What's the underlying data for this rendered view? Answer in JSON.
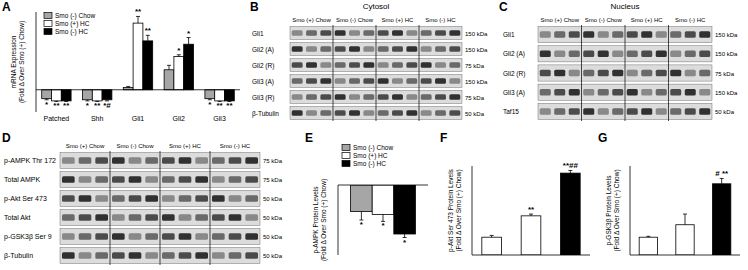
{
  "chart_data": [
    {
      "panel": "A",
      "type": "bar",
      "y_label": "mRNA Expression (Fold Δ Over Smo (+) Chow)",
      "categories": [
        "Patched",
        "Shh",
        "Gli1",
        "Gli2",
        "Gli3"
      ],
      "series": [
        {
          "name": "Smo (-) Chow",
          "color": "#a6a6a6",
          "values": [
            -0.8,
            -0.9,
            0.2,
            1.8,
            -0.8
          ],
          "errors": [
            0.1,
            0.1,
            0.1,
            0.4,
            0.1
          ],
          "annotations": [
            "*",
            "*",
            null,
            null,
            "*"
          ]
        },
        {
          "name": "Smo (+) HC",
          "color": "#ffffff",
          "values": [
            -1,
            -1,
            6,
            3,
            -1
          ],
          "errors": [
            0.05,
            0.05,
            0.6,
            0.15,
            0.05
          ],
          "annotations": [
            "**",
            "**",
            "**",
            "*",
            "**"
          ]
        },
        {
          "name": "Smo (-) HC",
          "color": "#000000",
          "values": [
            -1,
            -0.9,
            4.4,
            4.1,
            -1
          ],
          "errors": [
            0.05,
            0.1,
            0.5,
            0.6,
            0.05
          ],
          "annotations": [
            "**",
            "*#",
            "**",
            "*",
            "**"
          ]
        }
      ],
      "ylim": [
        -2,
        7
      ],
      "tick_labels": "x",
      "legend": "top-left"
    },
    {
      "panel": "E",
      "type": "bar",
      "y_label": "p-AMPK Protein Levels (Fold Δ Over Smo (+) Chow)",
      "categories": [
        null
      ],
      "series": [
        {
          "name": "Smo (-) Chow",
          "color": "#a6a6a6",
          "values": [
            -0.38
          ],
          "errors": [
            0.12
          ],
          "annotations": [
            "*"
          ]
        },
        {
          "name": "Smo (+) HC",
          "color": "#ffffff",
          "values": [
            -0.42
          ],
          "errors": [
            0.1
          ],
          "annotations": [
            "*"
          ]
        },
        {
          "name": "Smo (-) HC",
          "color": "#000000",
          "values": [
            -0.7
          ],
          "errors": [
            0.05
          ],
          "annotations": [
            "*"
          ]
        }
      ],
      "ylim": [
        -1,
        0
      ],
      "tick_labels": false,
      "legend": "top-left"
    },
    {
      "panel": "F",
      "type": "bar",
      "y_label": "p-Akt Ser 473 Protein Levels (Fold Δ Over Smo (+) Chow)",
      "categories": [
        null,
        null,
        null
      ],
      "values": [
        1,
        2.2,
        4.6
      ],
      "errors": [
        0.1,
        0.1,
        0.15
      ],
      "annotations": [
        null,
        "**",
        "**##"
      ],
      "colors": [
        "#ffffff",
        "#ffffff",
        "#000000"
      ],
      "ylim": [
        0,
        5
      ],
      "tick_labels": false
    },
    {
      "panel": "G",
      "type": "bar",
      "y_label": "p-GSK3β Protein Levels (Fold Δ Over Smo (+) Chow)",
      "categories": [
        null,
        null,
        null
      ],
      "values": [
        1,
        1.7,
        4.0
      ],
      "errors": [
        0.05,
        0.6,
        0.3
      ],
      "annotations": [
        null,
        null,
        "# **"
      ],
      "colors": [
        "#ffffff",
        "#ffffff",
        "#000000"
      ],
      "ylim": [
        0,
        5
      ],
      "tick_labels": false
    }
  ],
  "blots": [
    {
      "panel": "B",
      "title": "Cytosol",
      "groups": [
        "Smo (+) Chow",
        "Smo (-) Chow",
        "Smo (+) HC",
        "Smo (-) HC"
      ],
      "rows": [
        {
          "label": "Gli1",
          "kda": "150 kDa"
        },
        {
          "label": "Gli2 (A)",
          "kda": "150 kDa"
        },
        {
          "label": "Gli2 (R)",
          "kda": "75 kDa"
        },
        {
          "label": "Gli3 (A)",
          "kda": "150 kDa"
        },
        {
          "label": "Gli3 (R)",
          "kda": "75 kDa"
        },
        {
          "label": "β-Tubulin",
          "kda": "50 kDa"
        }
      ]
    },
    {
      "panel": "C",
      "title": "Nucleus",
      "groups": [
        "Smo (+) Chow",
        "Smo (-) Chow",
        "Smo (+) HC",
        "Smo (-) HC"
      ],
      "rows": [
        {
          "label": "Gli1",
          "kda": "150 kDa"
        },
        {
          "label": "Gli2 (A)",
          "kda": "150 kDa"
        },
        {
          "label": "Gli2 (R)",
          "kda": "75 kDa"
        },
        {
          "label": "Gli3 (A)",
          "kda": "150 kDa"
        },
        {
          "label": "Taf15",
          "kda": "50 kDa"
        }
      ]
    },
    {
      "panel": "D",
      "groups": [
        "Smo (+) Chow",
        "Smo (-) Chow",
        "Smo (+) HC",
        "Smo (-) HC"
      ],
      "rows": [
        {
          "label": "p-AMPK Thr 172",
          "kda": "75 kDa"
        },
        {
          "label": "Total AMPK",
          "kda": "75 kDa"
        },
        {
          "label": "p-Akt Ser 473",
          "kda": "50 kDa"
        },
        {
          "label": "Total Akt",
          "kda": "50 kDa"
        },
        {
          "label": "p-GSK3β Ser 9",
          "kda": "50 kDa"
        },
        {
          "label": "β-Tubulin",
          "kda": "50 kDa"
        }
      ]
    }
  ]
}
